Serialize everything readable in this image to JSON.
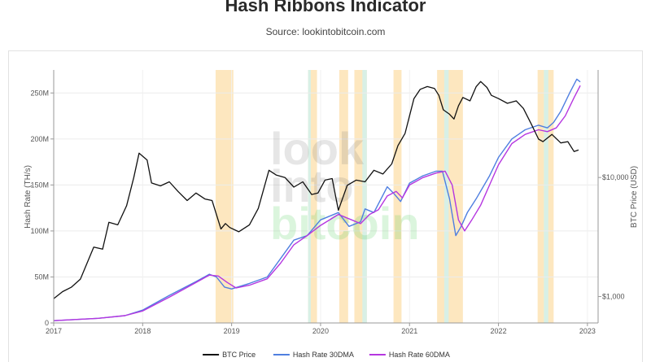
{
  "title": "Hash Ribbons Indicator",
  "subtitle": "Source: lookintobitcoin.com",
  "watermark": [
    "look",
    "into",
    "bitcoin"
  ],
  "chart_data": {
    "type": "line",
    "xlabel": "",
    "ylabel": "Hash Rate (TH/s)",
    "y2label": "BTC Price (USD)",
    "x_ticks": [
      "2017",
      "2018",
      "2019",
      "2020",
      "2021",
      "2022",
      "2023"
    ],
    "x_range": [
      2017.0,
      2023.12
    ],
    "ylim": [
      0,
      275
    ],
    "y_ticks": [
      {
        "value": 0,
        "label": "0"
      },
      {
        "value": 50,
        "label": "50M"
      },
      {
        "value": 100,
        "label": "100M"
      },
      {
        "value": 150,
        "label": "150M"
      },
      {
        "value": 200,
        "label": "200M"
      },
      {
        "value": 250,
        "label": "250M"
      }
    ],
    "y2_log": true,
    "y2_range": [
      600,
      80000
    ],
    "y2_ticks": [
      {
        "value": 1000,
        "label": "$1,000"
      },
      {
        "value": 10000,
        "label": "$10,000"
      }
    ],
    "colors": {
      "btc": "#111111",
      "ma30": "#4f7fe0",
      "ma60": "#b536e0",
      "capitulation": "#fde7bf",
      "recovery": "#d8f0e6"
    },
    "legend_position": "bottom",
    "series": [
      {
        "name": "BTC Price",
        "axis": "right",
        "x": [
          2017.0,
          2017.1,
          2017.2,
          2017.3,
          2017.45,
          2017.55,
          2017.62,
          2017.72,
          2017.82,
          2017.9,
          2017.96,
          2018.05,
          2018.1,
          2018.2,
          2018.3,
          2018.4,
          2018.5,
          2018.6,
          2018.7,
          2018.78,
          2018.88,
          2018.93,
          2018.98,
          2019.08,
          2019.2,
          2019.3,
          2019.42,
          2019.5,
          2019.6,
          2019.7,
          2019.8,
          2019.9,
          2019.97,
          2020.05,
          2020.13,
          2020.2,
          2020.3,
          2020.4,
          2020.5,
          2020.6,
          2020.7,
          2020.8,
          2020.87,
          2020.95,
          2021.0,
          2021.05,
          2021.12,
          2021.2,
          2021.28,
          2021.33,
          2021.38,
          2021.45,
          2021.5,
          2021.55,
          2021.6,
          2021.68,
          2021.75,
          2021.8,
          2021.87,
          2021.92,
          2022.0,
          2022.1,
          2022.2,
          2022.28,
          2022.37,
          2022.45,
          2022.5,
          2022.6,
          2022.7,
          2022.78,
          2022.85,
          2022.9
        ],
        "y": [
          960,
          1100,
          1200,
          1400,
          2600,
          2500,
          4200,
          4000,
          5800,
          10000,
          16000,
          14000,
          9000,
          8500,
          9200,
          7600,
          6400,
          7400,
          6600,
          6400,
          3700,
          4100,
          3800,
          3500,
          4000,
          5500,
          11500,
          10500,
          10000,
          8300,
          9200,
          7200,
          7400,
          9500,
          9800,
          5300,
          8600,
          9500,
          9200,
          11500,
          10700,
          13000,
          18500,
          23500,
          33000,
          46000,
          55000,
          58000,
          56000,
          49000,
          37000,
          34000,
          31000,
          40000,
          47000,
          44000,
          58000,
          64000,
          57000,
          49000,
          46000,
          42000,
          44000,
          38000,
          28000,
          21000,
          20000,
          23000,
          19500,
          20000,
          16500,
          17000
        ]
      },
      {
        "name": "Hash Rate 30DMA",
        "axis": "left",
        "x": [
          2017.0,
          2017.5,
          2017.8,
          2018.0,
          2018.3,
          2018.6,
          2018.75,
          2018.83,
          2018.92,
          2019.0,
          2019.2,
          2019.4,
          2019.55,
          2019.7,
          2019.85,
          2020.0,
          2020.2,
          2020.32,
          2020.45,
          2020.5,
          2020.6,
          2020.75,
          2020.83,
          2020.9,
          2021.0,
          2021.15,
          2021.3,
          2021.37,
          2021.45,
          2021.52,
          2021.58,
          2021.65,
          2021.75,
          2021.9,
          2022.0,
          2022.15,
          2022.3,
          2022.45,
          2022.55,
          2022.62,
          2022.7,
          2022.8,
          2022.88,
          2022.92
        ],
        "y": [
          2.5,
          5,
          8,
          14,
          30,
          45,
          53,
          50,
          39,
          37,
          43,
          50,
          70,
          90,
          95,
          112,
          120,
          105,
          110,
          124,
          120,
          148,
          140,
          132,
          152,
          160,
          165,
          165,
          135,
          95,
          105,
          120,
          135,
          160,
          180,
          200,
          210,
          215,
          212,
          218,
          230,
          250,
          265,
          262
        ]
      },
      {
        "name": "Hash Rate 60DMA",
        "axis": "left",
        "x": [
          2017.0,
          2017.5,
          2017.8,
          2018.0,
          2018.3,
          2018.6,
          2018.75,
          2018.85,
          2018.95,
          2019.05,
          2019.2,
          2019.4,
          2019.55,
          2019.7,
          2019.85,
          2020.0,
          2020.2,
          2020.35,
          2020.45,
          2020.55,
          2020.65,
          2020.75,
          2020.85,
          2020.92,
          2021.0,
          2021.15,
          2021.3,
          2021.4,
          2021.48,
          2021.55,
          2021.62,
          2021.7,
          2021.8,
          2021.9,
          2022.0,
          2022.15,
          2022.3,
          2022.45,
          2022.55,
          2022.65,
          2022.75,
          2022.85,
          2022.92
        ],
        "y": [
          2.5,
          5,
          8,
          13,
          28,
          44,
          52,
          51,
          44,
          38,
          41,
          48,
          65,
          85,
          95,
          106,
          118,
          112,
          108,
          118,
          123,
          138,
          143,
          136,
          150,
          158,
          163,
          165,
          150,
          112,
          100,
          112,
          128,
          150,
          172,
          195,
          205,
          210,
          208,
          212,
          225,
          245,
          258
        ]
      }
    ],
    "capitulation_bands": [
      [
        2018.82,
        2019.02
      ],
      [
        2019.86,
        2019.96
      ],
      [
        2020.21,
        2020.31
      ],
      [
        2020.38,
        2020.52
      ],
      [
        2020.82,
        2020.91
      ],
      [
        2021.31,
        2021.6
      ],
      [
        2022.44,
        2022.62
      ]
    ],
    "recovery_bands": [
      [
        2019.86,
        2019.89
      ],
      [
        2020.47,
        2020.52
      ],
      [
        2021.39,
        2021.44
      ],
      [
        2022.51,
        2022.56
      ]
    ]
  }
}
